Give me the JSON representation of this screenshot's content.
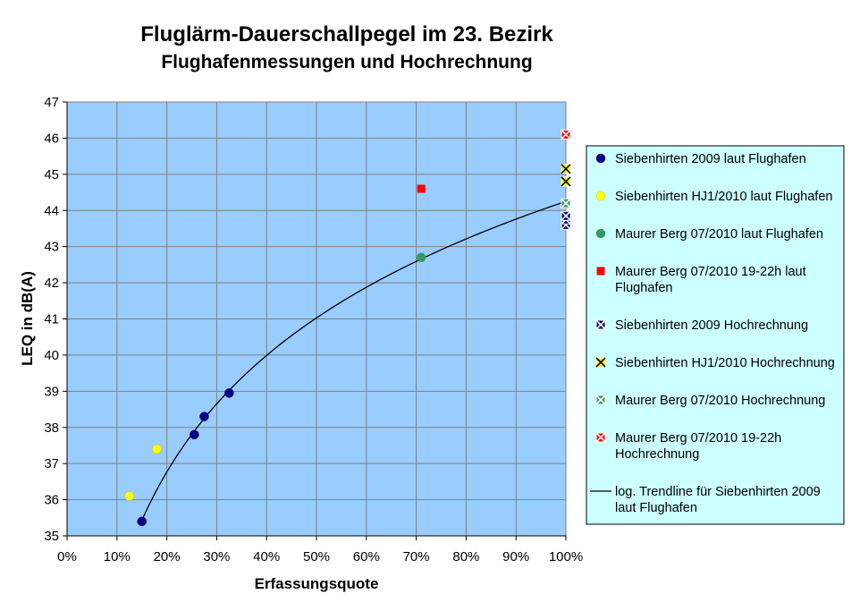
{
  "chart_data": {
    "type": "scatter",
    "title": "Fluglärm-Dauerschallpegel im 23. Bezirk",
    "subtitle": "Flughafenmessungen und Hochrechnung",
    "xlabel": "Erfassungsquote",
    "ylabel": "LEQ in dB(A)",
    "xlim": [
      0,
      1
    ],
    "ylim": [
      35,
      47
    ],
    "grid": true,
    "legend_position": "right",
    "plot_background": "#99ccff",
    "legend_background": "#ccffff",
    "x_ticks": [
      {
        "value": 0,
        "label": "0%"
      },
      {
        "value": 0.1,
        "label": "10%"
      },
      {
        "value": 0.2,
        "label": "20%"
      },
      {
        "value": 0.3,
        "label": "30%"
      },
      {
        "value": 0.4,
        "label": "40%"
      },
      {
        "value": 0.5,
        "label": "50%"
      },
      {
        "value": 0.6,
        "label": "60%"
      },
      {
        "value": 0.7,
        "label": "70%"
      },
      {
        "value": 0.8,
        "label": "80%"
      },
      {
        "value": 0.9,
        "label": "90%"
      },
      {
        "value": 1,
        "label": "100%"
      }
    ],
    "y_ticks": [
      {
        "value": 35,
        "label": "35"
      },
      {
        "value": 36,
        "label": "36"
      },
      {
        "value": 37,
        "label": "37"
      },
      {
        "value": 38,
        "label": "38"
      },
      {
        "value": 39,
        "label": "39"
      },
      {
        "value": 40,
        "label": "40"
      },
      {
        "value": 41,
        "label": "41"
      },
      {
        "value": 42,
        "label": "42"
      },
      {
        "value": 43,
        "label": "43"
      },
      {
        "value": 44,
        "label": "44"
      },
      {
        "value": 45,
        "label": "45"
      },
      {
        "value": 46,
        "label": "46"
      },
      {
        "value": 47,
        "label": "47"
      }
    ],
    "series": [
      {
        "name": "Siebenhirten 2009 laut Flughafen",
        "marker": "circle",
        "color": "#000080",
        "points": [
          {
            "x": 0.15,
            "y": 35.4
          },
          {
            "x": 0.255,
            "y": 37.8
          },
          {
            "x": 0.275,
            "y": 38.3
          },
          {
            "x": 0.325,
            "y": 38.95
          }
        ]
      },
      {
        "name": "Siebenhirten HJ1/2010 laut Flughafen",
        "marker": "circle",
        "color": "#ffff00",
        "points": [
          {
            "x": 0.125,
            "y": 36.1
          },
          {
            "x": 0.18,
            "y": 37.4
          }
        ]
      },
      {
        "name": "Maurer Berg 07/2010 laut Flughafen",
        "marker": "circle",
        "color": "#339966",
        "points": [
          {
            "x": 0.71,
            "y": 42.7
          }
        ]
      },
      {
        "name": "Maurer Berg 07/2010 19-22h laut Flughafen",
        "marker": "square",
        "color": "#ff0000",
        "points": [
          {
            "x": 0.71,
            "y": 44.6
          }
        ]
      },
      {
        "name": "Siebenhirten 2009 Hochrechnung",
        "marker": "x-square",
        "color": "#000080",
        "points": [
          {
            "x": 1.0,
            "y": 43.6
          },
          {
            "x": 1.0,
            "y": 43.75
          },
          {
            "x": 1.0,
            "y": 43.85
          }
        ]
      },
      {
        "name": "Siebenhirten HJ1/2010 Hochrechnung",
        "marker": "x-square",
        "color": "#ffff00",
        "points": [
          {
            "x": 1.0,
            "y": 44.8
          },
          {
            "x": 1.0,
            "y": 45.15
          }
        ]
      },
      {
        "name": "Maurer Berg 07/2010 Hochrechnung",
        "marker": "x-square",
        "color": "#339966",
        "points": [
          {
            "x": 1.0,
            "y": 44.2
          }
        ]
      },
      {
        "name": "Maurer Berg 07/2010 19-22h Hochrechnung",
        "marker": "x-square",
        "color": "#ff0000",
        "points": [
          {
            "x": 1.0,
            "y": 46.1
          }
        ]
      }
    ],
    "trendline": {
      "name": "log. Trendline für Siebenhirten 2009 laut Flughafen",
      "type": "logarithmic",
      "a": 44.25,
      "b": 4.65,
      "x_range": [
        0.15,
        1.0
      ],
      "color": "#000000"
    },
    "legend": [
      {
        "label": "Siebenhirten 2009 laut Flughafen",
        "marker": "circle",
        "color": "#000080"
      },
      {
        "label": "Siebenhirten HJ1/2010 laut Flughafen",
        "marker": "circle",
        "color": "#ffff00"
      },
      {
        "label": "Maurer Berg 07/2010 laut Flughafen",
        "marker": "circle",
        "color": "#339966"
      },
      {
        "label": "Maurer Berg 07/2010 19-22h laut Flughafen",
        "marker": "square",
        "color": "#ff0000"
      },
      {
        "label": "Siebenhirten 2009 Hochrechnung",
        "marker": "x-square",
        "color": "#000080"
      },
      {
        "label": "Siebenhirten HJ1/2010 Hochrechnung",
        "marker": "x-square",
        "color": "#ffff00"
      },
      {
        "label": "Maurer Berg 07/2010 Hochrechnung",
        "marker": "x-square",
        "color": "#339966"
      },
      {
        "label": "Maurer Berg 07/2010 19-22h Hochrechnung",
        "marker": "x-square",
        "color": "#ff0000"
      },
      {
        "label": "log. Trendline für Siebenhirten 2009 laut Flughafen",
        "marker": "line",
        "color": "#000000"
      }
    ]
  }
}
